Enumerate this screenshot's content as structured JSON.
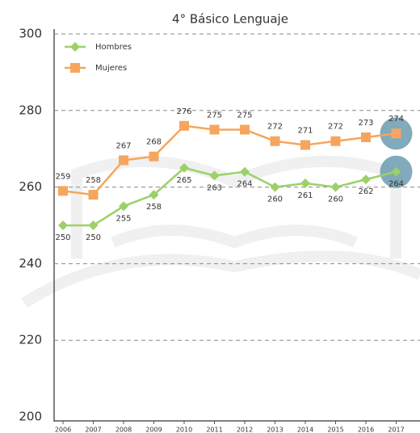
{
  "chart_data": {
    "type": "line",
    "title": "4° Básico Lenguaje",
    "categories": [
      "2006",
      "2007",
      "2008",
      "2009",
      "2010",
      "2011",
      "2012",
      "2013",
      "2014",
      "2015",
      "2016",
      "2017"
    ],
    "series": [
      {
        "name": "Hombres",
        "color": "#9dd06a",
        "marker": "diamond",
        "values": [
          250,
          250,
          255,
          258,
          265,
          263,
          264,
          260,
          261,
          260,
          262,
          264
        ]
      },
      {
        "name": "Mujeres",
        "color": "#f6a55e",
        "marker": "square",
        "values": [
          259,
          258,
          267,
          268,
          276,
          275,
          275,
          272,
          271,
          272,
          273,
          274
        ]
      }
    ],
    "ylim": [
      200,
      300
    ],
    "yticks": [
      200,
      220,
      240,
      260,
      280,
      300
    ],
    "grid": true
  }
}
